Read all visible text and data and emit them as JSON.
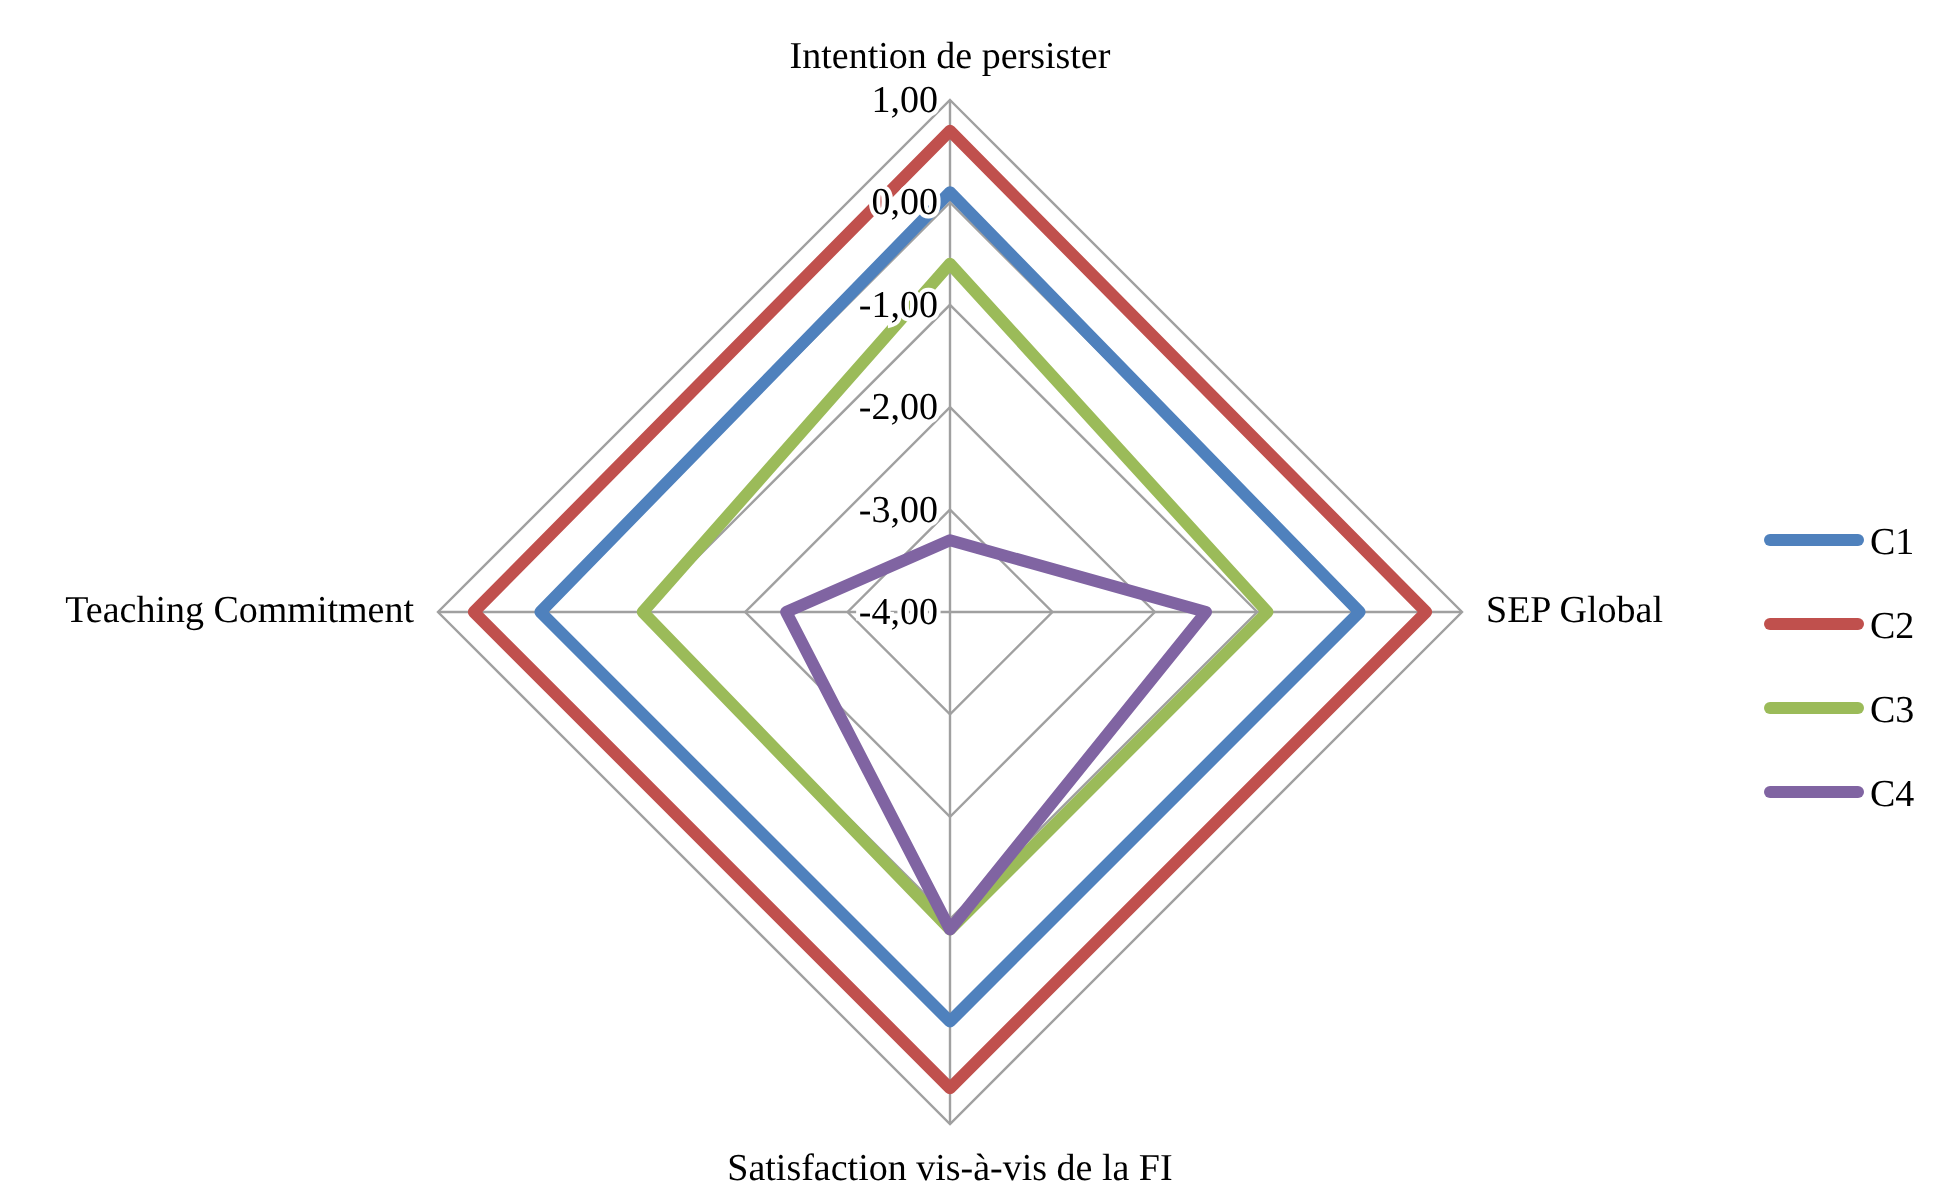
{
  "chart_data": {
    "type": "radar",
    "categories": [
      "Intention de persister",
      "SEP Global",
      "Satisfaction vis-à-vis de la FI",
      "Teaching Commitment"
    ],
    "series": [
      {
        "name": "C1",
        "color": "#4f81bd",
        "values": [
          0.1,
          0.0,
          0.0,
          0.0
        ]
      },
      {
        "name": "C2",
        "color": "#c0504d",
        "values": [
          0.7,
          0.65,
          0.65,
          0.65
        ]
      },
      {
        "name": "C3",
        "color": "#9bbb59",
        "values": [
          -0.6,
          -0.9,
          -0.9,
          -1.0
        ]
      },
      {
        "name": "C4",
        "color": "#8064a2",
        "values": [
          -3.3,
          -1.5,
          -0.9,
          -2.4
        ]
      }
    ],
    "ylim": [
      -4,
      1
    ],
    "yticks": [
      {
        "value": 1,
        "label": "1,00"
      },
      {
        "value": 0,
        "label": "0,00"
      },
      {
        "value": -1,
        "label": "-1,00"
      },
      {
        "value": -2,
        "label": "-2,00"
      },
      {
        "value": -3,
        "label": "-3,00"
      },
      {
        "value": -4,
        "label": "-4,00"
      }
    ],
    "grid": true,
    "legend": "right"
  }
}
